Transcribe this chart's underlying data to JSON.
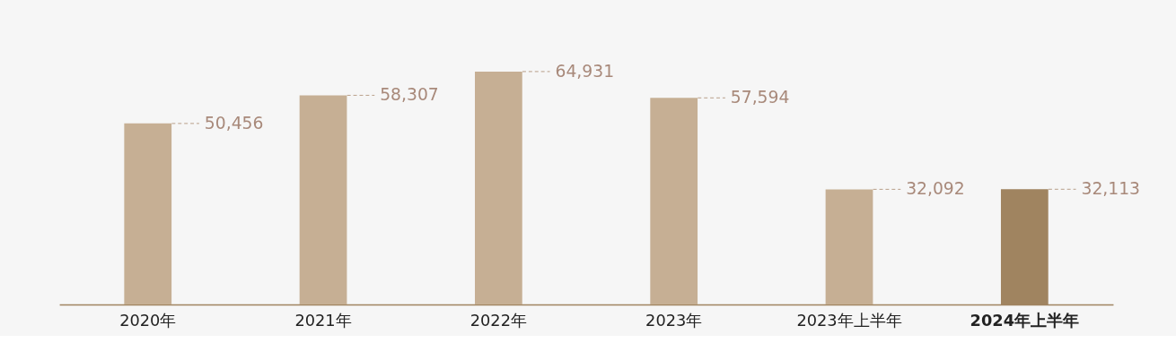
{
  "chart_data": {
    "type": "bar",
    "categories": [
      "2020年",
      "2021年",
      "2022年",
      "2023年",
      "2023年上半年",
      "2024年上半年"
    ],
    "values": [
      50456,
      58307,
      64931,
      57594,
      32092,
      32113
    ],
    "colors": [
      "#c6af94",
      "#c6af94",
      "#c6af94",
      "#c6af94",
      "#c6af94",
      "#a08460"
    ],
    "value_labels": [
      "50,456",
      "58,307",
      "64,931",
      "57,594",
      "32,092",
      "32,113"
    ]
  }
}
